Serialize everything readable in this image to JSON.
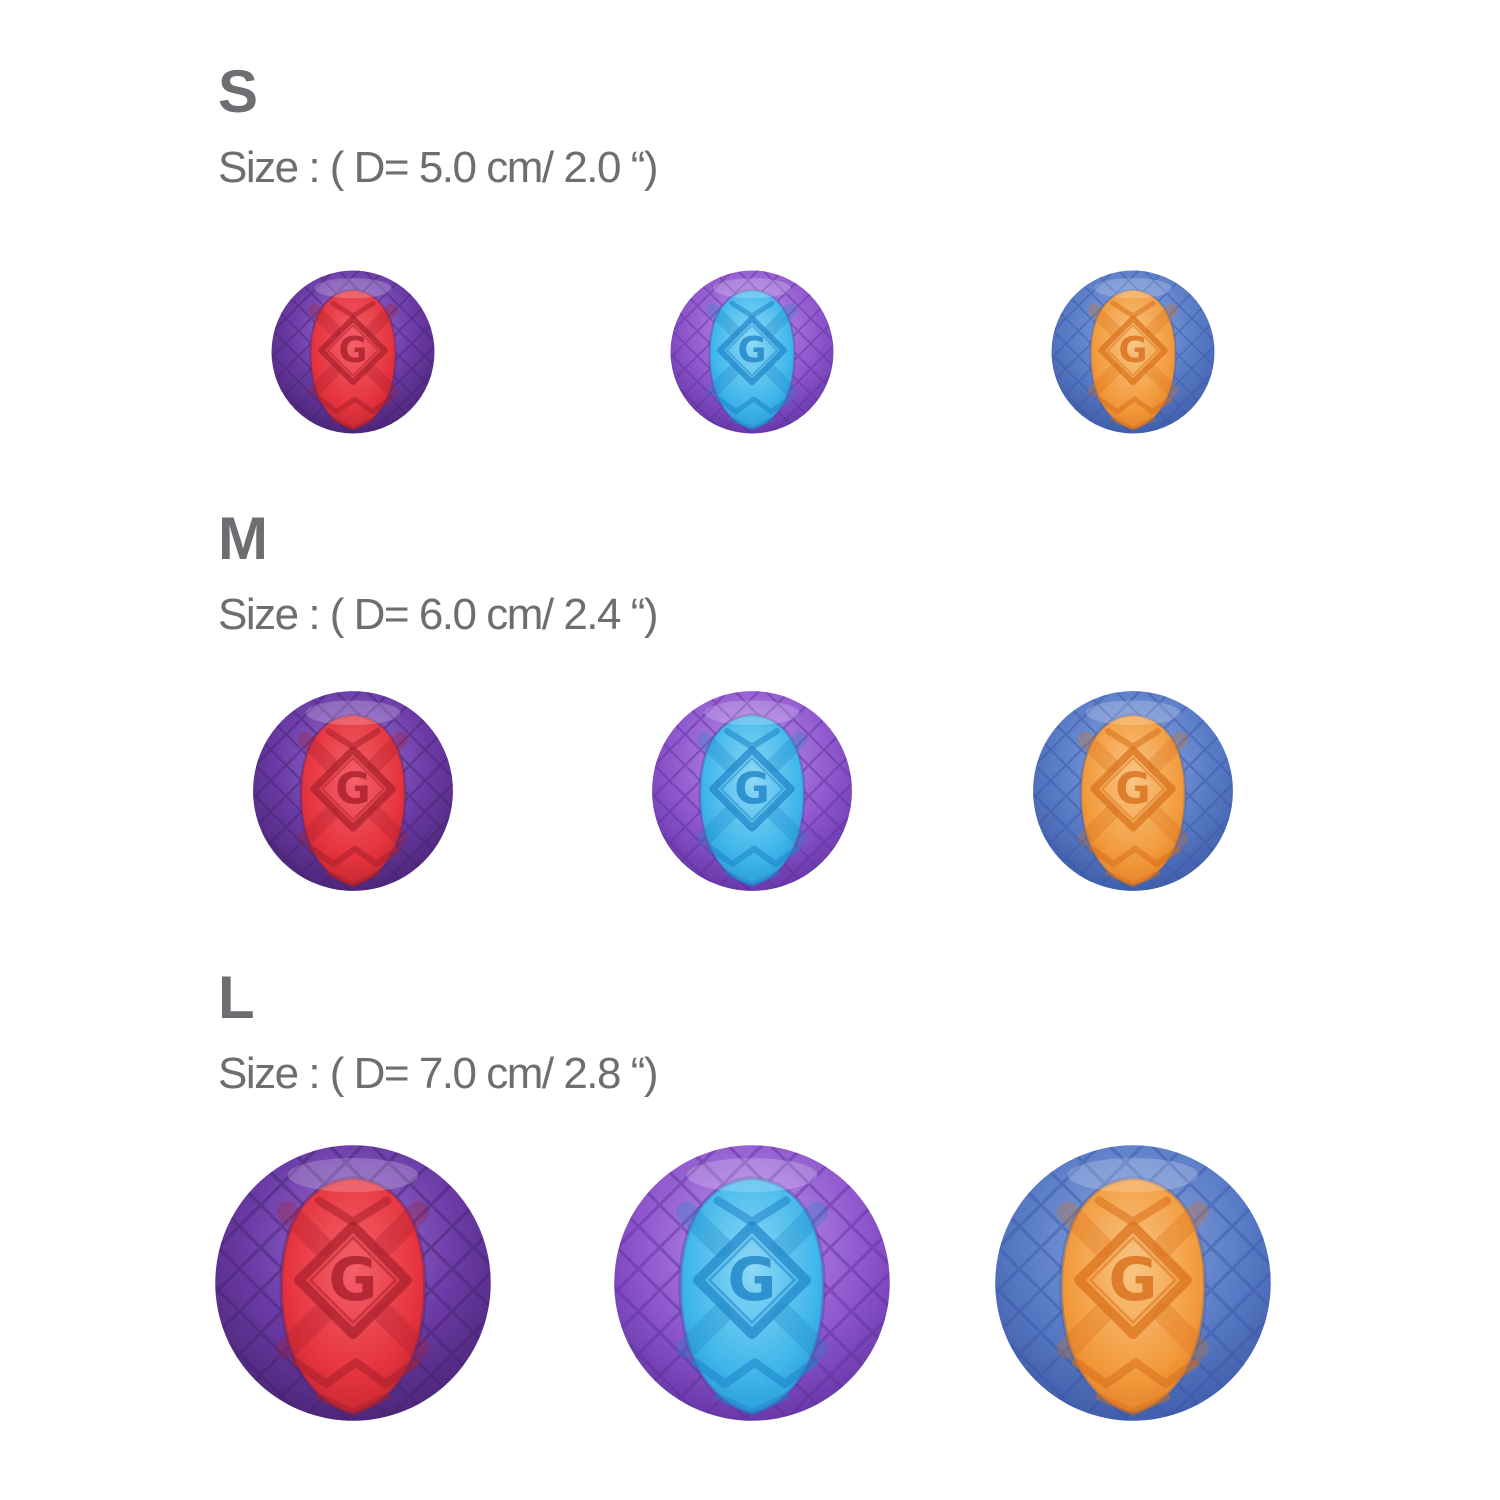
{
  "page": {
    "background": "#ffffff",
    "text_color": "#6d6e71"
  },
  "logo_letter": "G",
  "sections": [
    {
      "label": "S",
      "size_text": "Size : ( D= 5.0 cm/ 2.0 “)",
      "diameter_cm": "5.0",
      "diameter_inch": "2.0"
    },
    {
      "label": "M",
      "size_text": "Size : ( D= 6.0 cm/ 2.4 “)",
      "diameter_cm": "6.0",
      "diameter_inch": "2.4"
    },
    {
      "label": "L",
      "size_text": "Size : ( D= 7.0 cm/ 2.8 “)",
      "diameter_cm": "7.0",
      "diameter_inch": "2.8"
    }
  ],
  "ball_variants": [
    {
      "name": "red-purple-ball",
      "outer": {
        "base": "#6a3aa4",
        "light": "#9a6fd4",
        "dark": "#45216e"
      },
      "inner": {
        "base": "#e5333e",
        "light": "#f4616a",
        "dark": "#a81f2b"
      }
    },
    {
      "name": "blue-purple-ball",
      "outer": {
        "base": "#9159cf",
        "light": "#bd97e9",
        "dark": "#5d2f9e"
      },
      "inner": {
        "base": "#3eb5ea",
        "light": "#8ed9f6",
        "dark": "#1e84c8"
      }
    },
    {
      "name": "orange-blue-ball",
      "outer": {
        "base": "#5a7cc7",
        "light": "#89a7e0",
        "dark": "#3a57a4"
      },
      "inner": {
        "base": "#f29a3c",
        "light": "#f8c684",
        "dark": "#d96f1a"
      }
    }
  ]
}
